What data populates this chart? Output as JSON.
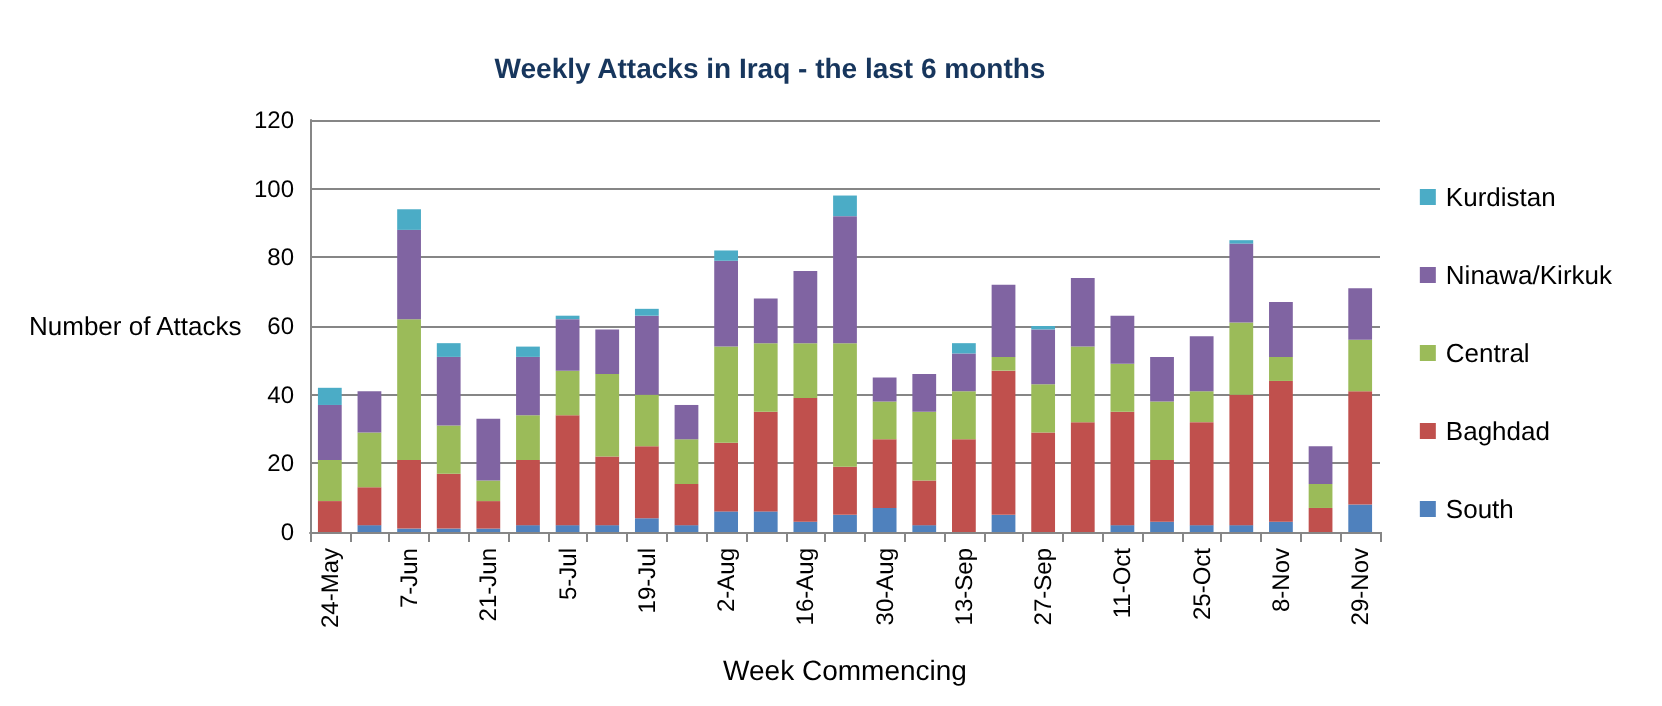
{
  "chart_data": {
    "type": "bar",
    "title": "Weekly Attacks in Iraq - the last 6 months",
    "xlabel": "Week Commencing",
    "ylabel": "Number of Attacks",
    "categories": [
      "24-May",
      null,
      "7-Jun",
      null,
      "21-Jun",
      null,
      "5-Jul",
      null,
      "19-Jul",
      null,
      "2-Aug",
      null,
      "16-Aug",
      null,
      "30-Aug",
      null,
      "13-Sep",
      null,
      "27-Sep",
      null,
      "11-Oct",
      null,
      "25-Oct",
      null,
      "8-Nov",
      null,
      "29-Nov"
    ],
    "stacked": true,
    "series": [
      {
        "name": "South",
        "color": "#4f81bd",
        "values": [
          0,
          2,
          1,
          1,
          1,
          2,
          2,
          2,
          4,
          2,
          6,
          6,
          3,
          5,
          7,
          2,
          0,
          5,
          0,
          0,
          2,
          3,
          2,
          2,
          3,
          0,
          8
        ]
      },
      {
        "name": "Baghdad",
        "color": "#c0504d",
        "values": [
          9,
          11,
          20,
          16,
          8,
          19,
          32,
          20,
          21,
          12,
          20,
          29,
          36,
          14,
          20,
          13,
          27,
          42,
          29,
          32,
          33,
          18,
          30,
          38,
          41,
          7,
          33
        ]
      },
      {
        "name": "Central",
        "color": "#9bbb59",
        "values": [
          12,
          16,
          41,
          14,
          6,
          13,
          13,
          24,
          15,
          13,
          28,
          20,
          16,
          36,
          11,
          20,
          14,
          4,
          14,
          22,
          14,
          17,
          9,
          21,
          7,
          7,
          15
        ]
      },
      {
        "name": "Ninawa/Kirkuk",
        "color": "#8064a2",
        "values": [
          16,
          12,
          26,
          20,
          18,
          17,
          15,
          13,
          23,
          10,
          25,
          13,
          21,
          37,
          7,
          11,
          11,
          21,
          16,
          20,
          14,
          13,
          16,
          23,
          16,
          11,
          15
        ]
      },
      {
        "name": "Kurdistan",
        "color": "#4bacc6",
        "values": [
          5,
          0,
          6,
          4,
          0,
          3,
          1,
          0,
          2,
          0,
          3,
          0,
          0,
          6,
          0,
          0,
          3,
          0,
          1,
          0,
          0,
          0,
          0,
          1,
          0,
          0,
          0
        ]
      }
    ],
    "ylim": [
      0,
      120
    ],
    "yticks": [
      0,
      20,
      40,
      60,
      80,
      100,
      120
    ],
    "grid": "y",
    "legend": "right"
  }
}
